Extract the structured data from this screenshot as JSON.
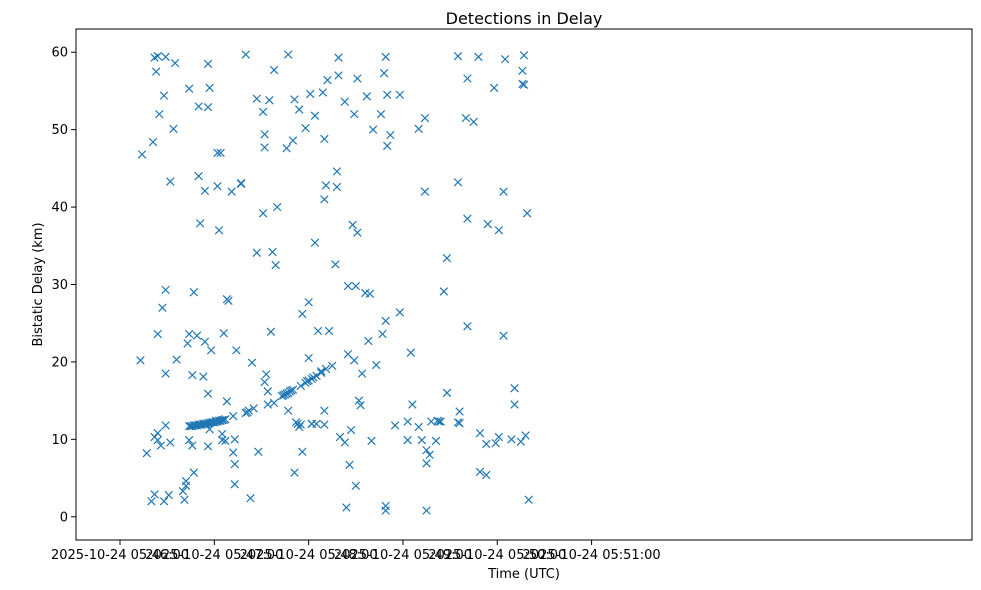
{
  "chart_data": {
    "type": "scatter",
    "title": "Detections in Delay",
    "xlabel": "Time (UTC)",
    "ylabel": "Bistatic Delay (km)",
    "marker": "x",
    "color": "#1f77b4",
    "grid": false,
    "xlim_seconds": [
      -28,
      542
    ],
    "ylim": [
      -3,
      63
    ],
    "x_origin": "2025-10-24 05:46:00",
    "x_unit": "seconds since x_origin",
    "x_ticks": [
      {
        "value": 0,
        "label": "2025-10-24 05:46:00"
      },
      {
        "value": 60,
        "label": "2025-10-24 05:47:00"
      },
      {
        "value": 120,
        "label": "2025-10-24 05:48:00"
      },
      {
        "value": 180,
        "label": "2025-10-24 05:49:00"
      },
      {
        "value": 240,
        "label": "2025-10-24 05:50:00"
      },
      {
        "value": 300,
        "label": "2025-10-24 05:51:00"
      }
    ],
    "y_ticks": [
      {
        "value": 0,
        "label": "0"
      },
      {
        "value": 10,
        "label": "10"
      },
      {
        "value": 20,
        "label": "20"
      },
      {
        "value": 30,
        "label": "30"
      },
      {
        "value": 40,
        "label": "40"
      },
      {
        "value": 50,
        "label": "50"
      },
      {
        "value": 60,
        "label": "60"
      }
    ],
    "series": [
      {
        "name": "detections",
        "points": [
          [
            13,
            20.2
          ],
          [
            14,
            46.8
          ],
          [
            17,
            8.2
          ],
          [
            20,
            2.0
          ],
          [
            21,
            48.4
          ],
          [
            22,
            10.3
          ],
          [
            22,
            2.9
          ],
          [
            22,
            59.3
          ],
          [
            23,
            57.5
          ],
          [
            24,
            59.5
          ],
          [
            24,
            23.6
          ],
          [
            24,
            9.9
          ],
          [
            24,
            10.8
          ],
          [
            25,
            52.0
          ],
          [
            26,
            9.2
          ],
          [
            27,
            27.0
          ],
          [
            28,
            2.0
          ],
          [
            28,
            54.4
          ],
          [
            29,
            29.3
          ],
          [
            29,
            11.8
          ],
          [
            29,
            18.5
          ],
          [
            29,
            59.4
          ],
          [
            31,
            2.8
          ],
          [
            32,
            43.3
          ],
          [
            32,
            9.6
          ],
          [
            34,
            50.1
          ],
          [
            35,
            58.6
          ],
          [
            36,
            20.3
          ],
          [
            40,
            3.3
          ],
          [
            41,
            2.2
          ],
          [
            42,
            4.6
          ],
          [
            42,
            4.0
          ],
          [
            43,
            22.4
          ],
          [
            44,
            23.6
          ],
          [
            44,
            9.9
          ],
          [
            44,
            55.3
          ],
          [
            46,
            18.3
          ],
          [
            46,
            9.2
          ],
          [
            47,
            29.0
          ],
          [
            47,
            5.7
          ],
          [
            49,
            23.4
          ],
          [
            50,
            53.0
          ],
          [
            50,
            44.0
          ],
          [
            51,
            37.9
          ],
          [
            53,
            18.1
          ],
          [
            54,
            42.1
          ],
          [
            54,
            22.6
          ],
          [
            56,
            58.5
          ],
          [
            56,
            52.9
          ],
          [
            56,
            9.1
          ],
          [
            56,
            15.9
          ],
          [
            57,
            55.4
          ],
          [
            57,
            11.3
          ],
          [
            58,
            21.5
          ],
          [
            61,
            12.4
          ],
          [
            62,
            47.0
          ],
          [
            62,
            42.7
          ],
          [
            63,
            37.0
          ],
          [
            64,
            47.0
          ],
          [
            65,
            9.9
          ],
          [
            65,
            10.7
          ],
          [
            66,
            23.7
          ],
          [
            67,
            9.8
          ],
          [
            68,
            14.9
          ],
          [
            68,
            28.1
          ],
          [
            69,
            27.9
          ],
          [
            71,
            42.0
          ],
          [
            72,
            8.3
          ],
          [
            72,
            13.0
          ],
          [
            73,
            10.0
          ],
          [
            73,
            4.2
          ],
          [
            73,
            6.8
          ],
          [
            74,
            21.5
          ],
          [
            77,
            43.1
          ],
          [
            77,
            43.0
          ],
          [
            80,
            59.7
          ],
          [
            80,
            13.4
          ],
          [
            81,
            13.5
          ],
          [
            82,
            13.7
          ],
          [
            83,
            2.4
          ],
          [
            84,
            19.9
          ],
          [
            85,
            14.0
          ],
          [
            87,
            34.1
          ],
          [
            87,
            54.0
          ],
          [
            88,
            8.4
          ],
          [
            91,
            52.3
          ],
          [
            91,
            39.2
          ],
          [
            92,
            49.4
          ],
          [
            92,
            47.7
          ],
          [
            92,
            17.4
          ],
          [
            93,
            18.4
          ],
          [
            94,
            14.5
          ],
          [
            94,
            16.2
          ],
          [
            95,
            53.8
          ],
          [
            96,
            23.9
          ],
          [
            97,
            34.2
          ],
          [
            98,
            57.7
          ],
          [
            98,
            14.7
          ],
          [
            99,
            32.5
          ],
          [
            100,
            40.0
          ],
          [
            106,
            47.6
          ],
          [
            107,
            59.7
          ],
          [
            107,
            13.7
          ],
          [
            110,
            48.6
          ],
          [
            111,
            5.7
          ],
          [
            111,
            53.9
          ],
          [
            112,
            12.2
          ],
          [
            113,
            12.0
          ],
          [
            114,
            11.6
          ],
          [
            114,
            52.6
          ],
          [
            115,
            11.9
          ],
          [
            115,
            16.9
          ],
          [
            116,
            8.4
          ],
          [
            116,
            26.2
          ],
          [
            118,
            50.2
          ],
          [
            120,
            20.5
          ],
          [
            120,
            27.7
          ],
          [
            121,
            54.6
          ],
          [
            122,
            12.0
          ],
          [
            122,
            12.0
          ],
          [
            124,
            51.8
          ],
          [
            124,
            35.4
          ],
          [
            125,
            12.0
          ],
          [
            126,
            24.0
          ],
          [
            128,
            18.8
          ],
          [
            129,
            54.8
          ],
          [
            130,
            13.7
          ],
          [
            130,
            48.8
          ],
          [
            130,
            11.9
          ],
          [
            130,
            41.0
          ],
          [
            131,
            42.8
          ],
          [
            132,
            56.4
          ],
          [
            133,
            24.0
          ],
          [
            135,
            19.5
          ],
          [
            137,
            32.6
          ],
          [
            138,
            42.6
          ],
          [
            138,
            44.6
          ],
          [
            139,
            59.3
          ],
          [
            139,
            57.0
          ],
          [
            140,
            10.3
          ],
          [
            143,
            9.6
          ],
          [
            143,
            53.6
          ],
          [
            144,
            1.2
          ],
          [
            145,
            21.0
          ],
          [
            145,
            29.8
          ],
          [
            146,
            6.7
          ],
          [
            147,
            11.2
          ],
          [
            148,
            37.7
          ],
          [
            149,
            52.0
          ],
          [
            149,
            20.2
          ],
          [
            150,
            29.8
          ],
          [
            150,
            4.0
          ],
          [
            151,
            36.7
          ],
          [
            151,
            56.6
          ],
          [
            152,
            15.0
          ],
          [
            153,
            14.4
          ],
          [
            154,
            18.5
          ],
          [
            156,
            28.9
          ],
          [
            157,
            54.3
          ],
          [
            158,
            22.7
          ],
          [
            159,
            28.8
          ],
          [
            160,
            9.8
          ],
          [
            161,
            50.0
          ],
          [
            163,
            19.6
          ],
          [
            166,
            52.0
          ],
          [
            167,
            23.6
          ],
          [
            168,
            57.3
          ],
          [
            169,
            59.4
          ],
          [
            169,
            0.8
          ],
          [
            169,
            1.4
          ],
          [
            169,
            25.3
          ],
          [
            170,
            54.5
          ],
          [
            170,
            47.9
          ],
          [
            172,
            49.3
          ],
          [
            175,
            11.8
          ],
          [
            178,
            54.5
          ],
          [
            178,
            26.4
          ],
          [
            183,
            12.3
          ],
          [
            183,
            9.9
          ],
          [
            185,
            21.2
          ],
          [
            186,
            14.5
          ],
          [
            190,
            50.1
          ],
          [
            190,
            11.6
          ],
          [
            192,
            9.9
          ],
          [
            194,
            42.0
          ],
          [
            194,
            51.5
          ],
          [
            195,
            8.6
          ],
          [
            195,
            0.8
          ],
          [
            195,
            6.9
          ],
          [
            197,
            8.0
          ],
          [
            198,
            12.3
          ],
          [
            201,
            9.8
          ],
          [
            202,
            12.4
          ],
          [
            203,
            12.3
          ],
          [
            204,
            12.3
          ],
          [
            206,
            29.1
          ],
          [
            208,
            33.4
          ],
          [
            208,
            16.0
          ],
          [
            215,
            43.2
          ],
          [
            215,
            59.5
          ],
          [
            215,
            12.2
          ],
          [
            216,
            13.6
          ],
          [
            216,
            12.1
          ],
          [
            220,
            51.5
          ],
          [
            221,
            24.6
          ],
          [
            221,
            56.6
          ],
          [
            221,
            38.5
          ],
          [
            225,
            51.0
          ],
          [
            228,
            59.4
          ],
          [
            229,
            10.8
          ],
          [
            229,
            5.8
          ],
          [
            233,
            9.4
          ],
          [
            233,
            5.4
          ],
          [
            234,
            37.8
          ],
          [
            238,
            55.4
          ],
          [
            239,
            9.5
          ],
          [
            241,
            10.3
          ],
          [
            241,
            37.0
          ],
          [
            244,
            23.4
          ],
          [
            244,
            42.0
          ],
          [
            245,
            59.1
          ],
          [
            249,
            10.0
          ],
          [
            251,
            16.6
          ],
          [
            251,
            14.5
          ],
          [
            255,
            9.7
          ],
          [
            256,
            57.6
          ],
          [
            256,
            55.9
          ],
          [
            257,
            59.6
          ],
          [
            257,
            55.8
          ],
          [
            258,
            10.5
          ],
          [
            259,
            39.2
          ],
          [
            260,
            2.2
          ],
          [
            44,
            11.7
          ],
          [
            45,
            11.7
          ],
          [
            46,
            11.7
          ],
          [
            47,
            11.8
          ],
          [
            48,
            11.8
          ],
          [
            49,
            11.8
          ],
          [
            50,
            11.9
          ],
          [
            51,
            11.9
          ],
          [
            52,
            11.9
          ],
          [
            53,
            12.0
          ],
          [
            54,
            12.0
          ],
          [
            55,
            12.0
          ],
          [
            56,
            12.1
          ],
          [
            57,
            12.1
          ],
          [
            58,
            12.2
          ],
          [
            59,
            12.2
          ],
          [
            60,
            12.2
          ],
          [
            61,
            12.3
          ],
          [
            62,
            12.3
          ],
          [
            63,
            12.4
          ],
          [
            64,
            12.4
          ],
          [
            65,
            12.5
          ],
          [
            66,
            12.5
          ],
          [
            67,
            12.6
          ],
          [
            103,
            15.6
          ],
          [
            104,
            15.7
          ],
          [
            105,
            15.8
          ],
          [
            106,
            15.9
          ],
          [
            107,
            16.0
          ],
          [
            108,
            16.2
          ],
          [
            109,
            16.3
          ],
          [
            110,
            16.4
          ],
          [
            118,
            17.3
          ],
          [
            119,
            17.5
          ],
          [
            120,
            17.6
          ],
          [
            122,
            17.8
          ],
          [
            123,
            18.0
          ],
          [
            125,
            18.2
          ],
          [
            128,
            18.6
          ],
          [
            131,
            19.1
          ]
        ]
      }
    ]
  }
}
